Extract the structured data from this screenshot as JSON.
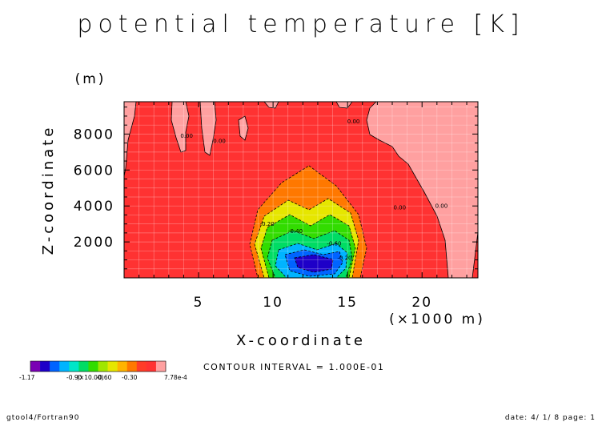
{
  "chart_data": {
    "type": "contour",
    "title": "potential temperature [K]",
    "xlabel": "X-coordinate",
    "ylabel": "Z-coordinate",
    "x_unit": "(×1000 m)",
    "y_unit": "(m)",
    "xlim": [
      0,
      23.75
    ],
    "ylim": [
      0,
      9800
    ],
    "x_ticks": [
      5,
      10,
      15,
      20
    ],
    "y_ticks": [
      2000,
      4000,
      6000,
      8000
    ],
    "grid": true,
    "contour_interval_text": "CONTOUR INTERVAL = 1.000E-01",
    "colorbar": {
      "colors": [
        "#7a00b4",
        "#1e00c8",
        "#0064ff",
        "#00b4ff",
        "#00e6c8",
        "#00dc64",
        "#32dc00",
        "#a0e600",
        "#e6e600",
        "#ffb400",
        "#ff7800",
        "#ff3c28",
        "#ff3232",
        "#ffa0a0"
      ],
      "labels": [
        "-1.17",
        "-0.90",
        "-0.60",
        "-0.30",
        "7.78e-4"
      ],
      "overlap_label": "(×10.00)"
    },
    "contour_labels": [
      {
        "text": "0.00",
        "x": 4.2,
        "y": 7800
      },
      {
        "text": "0.00",
        "x": 6.4,
        "y": 7500
      },
      {
        "text": "0.00",
        "x": 15.4,
        "y": 8600
      },
      {
        "text": "0.00",
        "x": 18.5,
        "y": 3800
      },
      {
        "text": "0.00",
        "x": 21.3,
        "y": 3900
      },
      {
        "text": "-0.20",
        "x": 9.6,
        "y": 2900
      },
      {
        "text": "-0.40",
        "x": 11.5,
        "y": 2500
      },
      {
        "text": "-0.60",
        "x": 14.1,
        "y": 1800
      },
      {
        "text": "-0.20",
        "x": 14.8,
        "y": 1000
      }
    ]
  },
  "footer": {
    "left": "gtool4/Fortran90",
    "right": "date: 4/ 1/ 8 page: 1"
  }
}
